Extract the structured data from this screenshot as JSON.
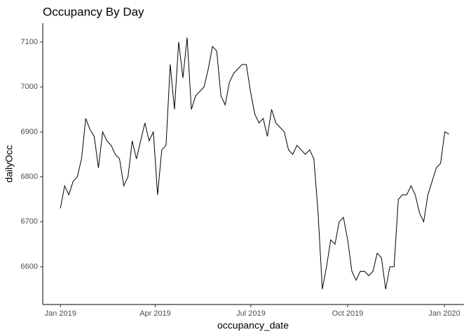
{
  "chart_data": {
    "type": "line",
    "title": "Occupancy By Day",
    "x_label": "occupancy_date",
    "y_label": "dailyOcc",
    "x": [
      2019,
      2019.011,
      2019.022,
      2019.033,
      2019.044,
      2019.055,
      2019.066,
      2019.077,
      2019.088,
      2019.099,
      2019.11,
      2019.121,
      2019.132,
      2019.143,
      2019.154,
      2019.165,
      2019.176,
      2019.187,
      2019.198,
      2019.209,
      2019.22,
      2019.231,
      2019.242,
      2019.253,
      2019.264,
      2019.275,
      2019.286,
      2019.297,
      2019.308,
      2019.319,
      2019.33,
      2019.341,
      2019.352,
      2019.363,
      2019.374,
      2019.385,
      2019.396,
      2019.407,
      2019.418,
      2019.429,
      2019.44,
      2019.451,
      2019.462,
      2019.473,
      2019.484,
      2019.495,
      2019.506,
      2019.517,
      2019.528,
      2019.539,
      2019.55,
      2019.561,
      2019.572,
      2019.583,
      2019.594,
      2019.605,
      2019.616,
      2019.627,
      2019.638,
      2019.649,
      2019.66,
      2019.671,
      2019.682,
      2019.693,
      2019.704,
      2019.715,
      2019.726,
      2019.737,
      2019.748,
      2019.759,
      2019.77,
      2019.781,
      2019.792,
      2019.803,
      2019.814,
      2019.825,
      2019.836,
      2019.847,
      2019.858,
      2019.869,
      2019.88,
      2019.891,
      2019.902,
      2019.913,
      2019.924,
      2019.935,
      2019.946,
      2019.957,
      2019.968,
      2019.979,
      2019.99,
      2020.001,
      2020.012
    ],
    "series": [
      {
        "name": "dailyOcc",
        "color": "#000000",
        "values": [
          6730,
          6780,
          6760,
          6790,
          6800,
          6840,
          6930,
          6905,
          6890,
          6820,
          6900,
          6880,
          6870,
          6850,
          6840,
          6780,
          6800,
          6880,
          6840,
          6880,
          6920,
          6880,
          6900,
          6760,
          6860,
          6870,
          7050,
          6950,
          7100,
          7020,
          7110,
          6950,
          6980,
          6990,
          7000,
          7040,
          7090,
          7080,
          6980,
          6960,
          7010,
          7030,
          7040,
          7050,
          7050,
          6990,
          6940,
          6920,
          6930,
          6890,
          6950,
          6920,
          6910,
          6900,
          6860,
          6850,
          6870,
          6860,
          6850,
          6860,
          6840,
          6720,
          6550,
          6600,
          6660,
          6650,
          6700,
          6710,
          6660,
          6590,
          6570,
          6590,
          6590,
          6580,
          6590,
          6630,
          6620,
          6550,
          6600,
          6600,
          6750,
          6760,
          6760,
          6780,
          6760,
          6720,
          6700,
          6760,
          6790,
          6820,
          6830,
          6900,
          6895
        ]
      }
    ],
    "xlim": [
      2018.954,
      2020.051
    ],
    "xticks": [
      {
        "value": 2019,
        "label": "Jan 2019"
      },
      {
        "value": 2019.247,
        "label": "Apr 2019"
      },
      {
        "value": 2019.496,
        "label": "Jul 2019"
      },
      {
        "value": 2019.748,
        "label": "Oct 2019"
      },
      {
        "value": 2020,
        "label": "Jan 2020"
      }
    ],
    "ylim": [
      6516,
      7142
    ],
    "yticks": [
      6600,
      6700,
      6800,
      6900,
      7000,
      7100
    ],
    "grid": false
  }
}
